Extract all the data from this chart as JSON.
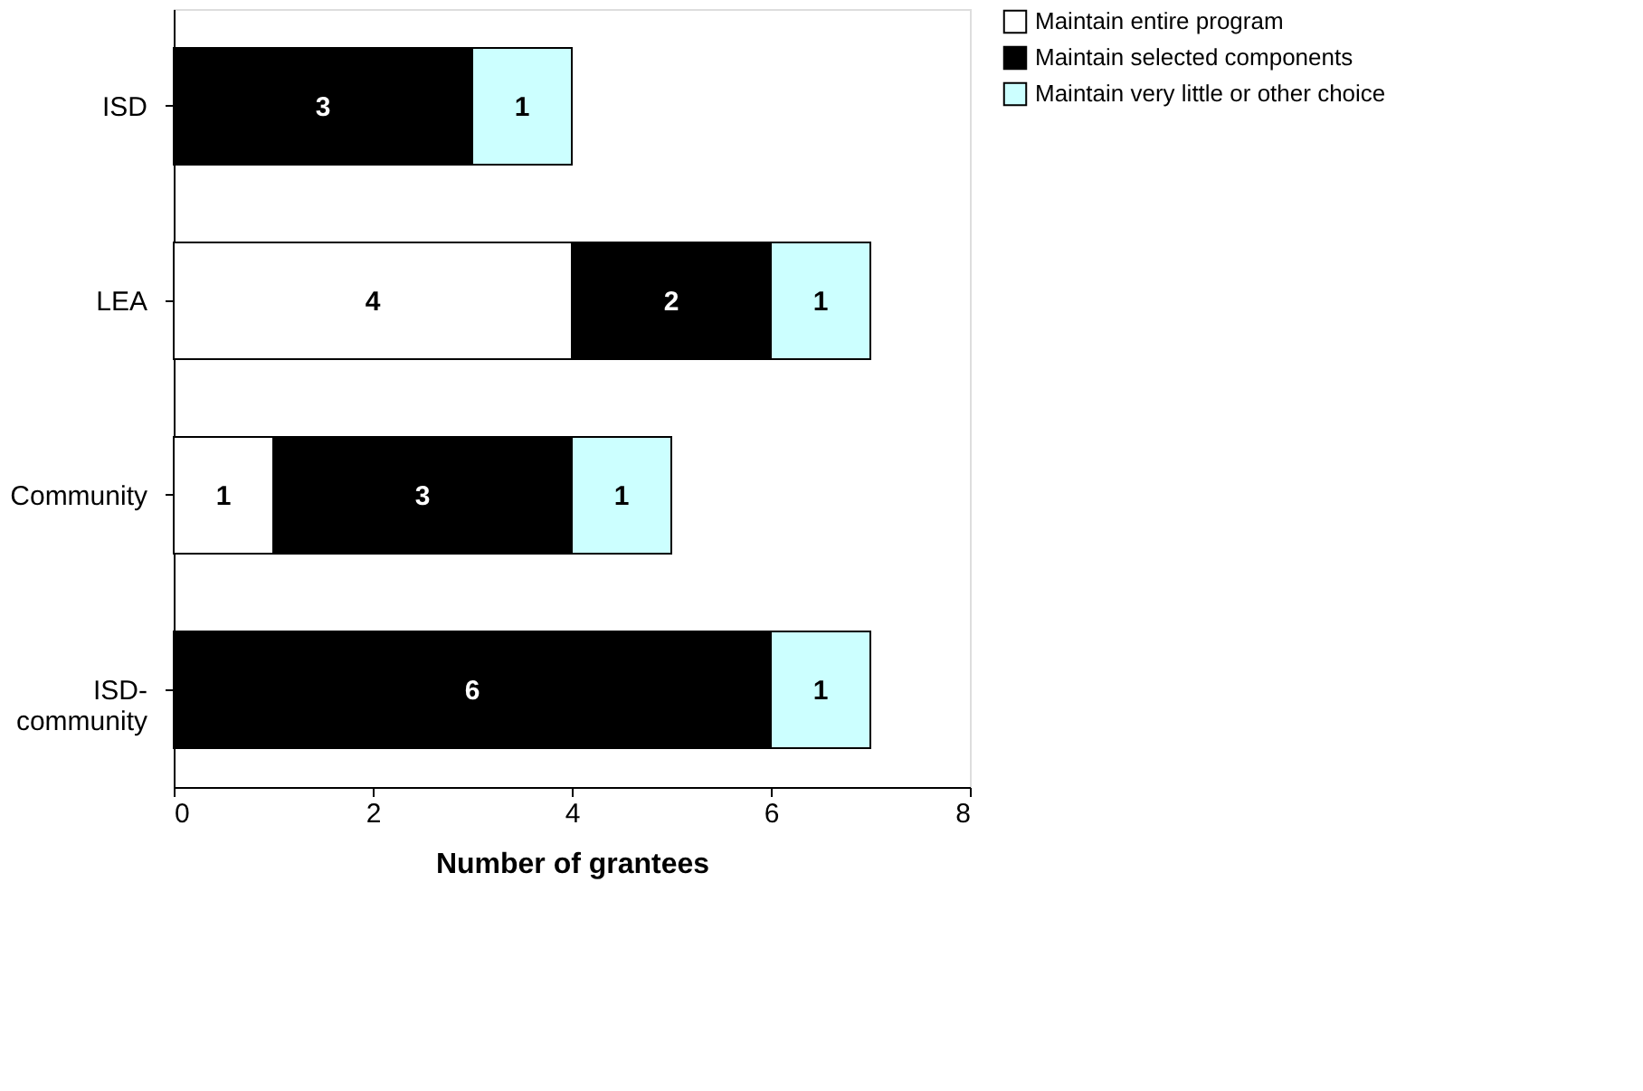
{
  "chart_data": {
    "type": "bar",
    "orientation": "horizontal",
    "stacked": true,
    "xlabel": "Number of grantees",
    "categories": [
      "ISD",
      "LEA",
      "Community",
      "ISD-community"
    ],
    "series": [
      {
        "name": "Maintain entire program",
        "color": "#ffffff",
        "values": [
          null,
          4,
          1,
          null
        ]
      },
      {
        "name": "Maintain selected components",
        "color": "#000000",
        "values": [
          3,
          2,
          3,
          6
        ]
      },
      {
        "name": "Maintain very little or other choice",
        "color": "#ccffff",
        "values": [
          1,
          1,
          1,
          1
        ]
      }
    ],
    "xlim": [
      0,
      8
    ],
    "xticks": [
      0,
      2,
      4,
      6,
      8
    ],
    "data_labels": true,
    "grid": false,
    "legend": "right"
  }
}
